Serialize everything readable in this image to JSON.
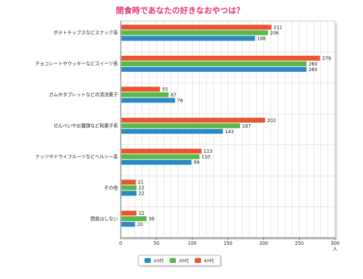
{
  "chart_data": {
    "type": "bar",
    "orientation": "horizontal",
    "title": "間食時であなたの好きなおやつは？",
    "categories": [
      "ポテトチップスなどスナック系",
      "チョコレートやクッキーなどスイーツ系",
      "ガムやタブレットなどの清涼菓子",
      "せんべいやお饅頭など和菓子系",
      "ナッツやドライフルーツなどヘルシー系",
      "その他",
      "間食はしない"
    ],
    "series": [
      {
        "name": "40代",
        "color": "#e8552e",
        "values": [
          211,
          279,
          55,
          202,
          113,
          21,
          22
        ]
      },
      {
        "name": "30代",
        "color": "#5bb84a",
        "values": [
          206,
          260,
          67,
          167,
          110,
          22,
          36
        ]
      },
      {
        "name": "20代",
        "color": "#2b8ac4",
        "values": [
          188,
          260,
          76,
          143,
          99,
          22,
          20
        ]
      }
    ],
    "legend_order": [
      "20代",
      "30代",
      "40代"
    ],
    "xlim": [
      0,
      300
    ],
    "xticks": [
      "0",
      "50",
      "100",
      "150",
      "200",
      "250",
      "300"
    ],
    "x_unit": "人",
    "grid": true,
    "legend_position": "bottom",
    "title_color": "#e8336c"
  }
}
